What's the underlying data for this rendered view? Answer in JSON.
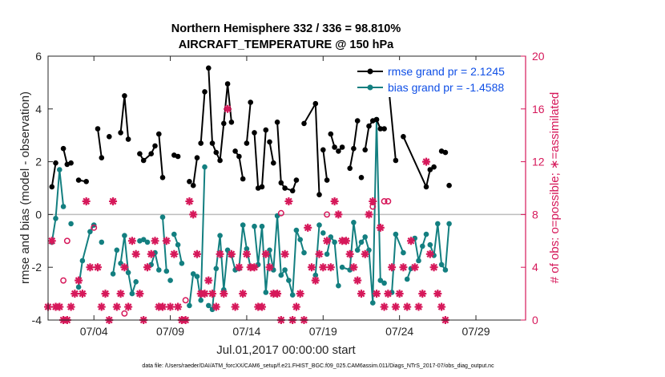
{
  "chart_data": {
    "type": "line",
    "title": [
      "Northern Hemisphere 332 / 336 = 98.810%",
      "AIRCRAFT_TEMPERATURE @ 150 hPa"
    ],
    "xlabel": "Jul.01,2017 00:00:00 start",
    "ylabel": "rmse and bias (model - observation)",
    "y2label": "# of obs: o=possible; ∗=assimilated",
    "footnote": "data file: /Users/raeder/DAI/ATM_forcXX/CAM6_setup/f.e21.FHIST_BGC.f09_025.CAM6assim.011/Diags_NTrS_2017-07/obs_diag_output.nc",
    "xlim": [
      1.0,
      32.25
    ],
    "ylim": [
      -4,
      6
    ],
    "y2lim": [
      0,
      20
    ],
    "xtick_positions": [
      4,
      9,
      14,
      19,
      24,
      29
    ],
    "xtick_labels": [
      "07/04",
      "07/09",
      "07/14",
      "07/19",
      "07/24",
      "07/29"
    ],
    "ytick_labels": [
      "-4",
      "-2",
      "0",
      "2",
      "4",
      "6"
    ],
    "y2tick_labels": [
      "0",
      "4",
      "8",
      "12",
      "16",
      "20"
    ],
    "legend_position": "top-right",
    "zero_line": true,
    "colors": {
      "rmse": "#000000",
      "bias": "#137f80",
      "counts": "#d6185a",
      "zero": "#bdbdbd",
      "legend": "#0f4fe6"
    },
    "series": [
      {
        "name": "rmse grand pr = 2.1245",
        "points": [
          [
            1.25,
            1.05
          ],
          [
            1.5,
            1.95
          ],
          [
            2.0,
            2.5
          ],
          [
            2.25,
            1.9
          ],
          [
            2.5,
            1.95
          ],
          [
            3.0,
            1.3
          ],
          [
            3.5,
            1.25
          ],
          [
            4.25,
            3.25
          ],
          [
            4.5,
            2.15
          ],
          [
            5.0,
            2.95
          ],
          [
            5.75,
            3.1
          ],
          [
            6.0,
            4.5
          ],
          [
            6.25,
            2.85
          ],
          [
            7.0,
            2.3
          ],
          [
            7.25,
            2.05
          ],
          [
            7.75,
            2.3
          ],
          [
            8.0,
            2.6
          ],
          [
            8.25,
            3.05
          ],
          [
            8.5,
            1.4
          ],
          [
            9.25,
            2.25
          ],
          [
            9.5,
            2.2
          ],
          [
            10.25,
            1.25
          ],
          [
            10.5,
            1.1
          ],
          [
            10.75,
            2.15
          ],
          [
            11.0,
            2.7
          ],
          [
            11.25,
            4.65
          ],
          [
            11.5,
            5.55
          ],
          [
            11.75,
            2.7
          ],
          [
            12.0,
            2.35
          ],
          [
            12.25,
            2.05
          ],
          [
            12.5,
            3.45
          ],
          [
            12.75,
            4.95
          ],
          [
            13.0,
            3.5
          ],
          [
            13.25,
            2.4
          ],
          [
            13.5,
            2.2
          ],
          [
            13.75,
            1.35
          ],
          [
            14.0,
            2.7
          ],
          [
            14.25,
            4.25
          ],
          [
            14.5,
            3.1
          ],
          [
            14.75,
            1.0
          ],
          [
            15.0,
            1.05
          ],
          [
            15.25,
            3.2
          ],
          [
            15.5,
            2.75
          ],
          [
            15.75,
            1.95
          ],
          [
            16.0,
            3.5
          ],
          [
            16.25,
            1.2
          ],
          [
            16.5,
            1.0
          ],
          [
            17.0,
            0.9
          ],
          [
            17.25,
            1.3
          ],
          [
            17.75,
            3.45
          ],
          [
            18.5,
            4.2
          ],
          [
            18.75,
            0.75
          ],
          [
            19.0,
            2.45
          ],
          [
            19.25,
            1.3
          ],
          [
            19.5,
            3.05
          ],
          [
            19.75,
            2.55
          ],
          [
            20.0,
            2.4
          ],
          [
            20.25,
            2.55
          ],
          [
            20.75,
            1.75
          ],
          [
            21.0,
            2.5
          ],
          [
            21.25,
            3.55
          ],
          [
            21.5,
            1.4
          ],
          [
            21.75,
            2.45
          ],
          [
            22.0,
            3.35
          ],
          [
            22.25,
            3.55
          ],
          [
            22.5,
            3.6
          ],
          [
            22.75,
            3.25
          ],
          [
            23.0,
            3.25
          ],
          [
            23.25,
            5.05
          ],
          [
            23.75,
            2.05
          ],
          [
            24.25,
            2.95
          ],
          [
            25.75,
            1.05
          ],
          [
            26.0,
            1.7
          ],
          [
            26.25,
            1.8
          ],
          [
            26.75,
            2.4
          ],
          [
            27.0,
            2.35
          ],
          [
            27.25,
            1.1
          ]
        ],
        "segments_from_point_index": [
          0,
          2,
          5,
          7,
          9,
          10,
          13,
          17,
          19,
          21,
          22,
          24,
          26,
          33,
          36,
          38,
          42,
          44,
          49,
          52,
          54,
          56,
          58,
          61,
          62,
          68,
          70,
          73,
          74,
          76,
          77
        ]
      },
      {
        "name": "bias grand pr = -1.4588",
        "points": [
          [
            1.25,
            -1.05
          ],
          [
            1.5,
            -0.15
          ],
          [
            1.75,
            1.7
          ],
          [
            2.0,
            0.3
          ],
          [
            2.5,
            -0.35
          ],
          [
            3.0,
            -2.75
          ],
          [
            3.25,
            -1.75
          ],
          [
            3.75,
            -0.65
          ],
          [
            4.0,
            -0.4
          ],
          [
            4.5,
            -1.05
          ],
          [
            5.25,
            -2.25
          ],
          [
            5.5,
            -1.35
          ],
          [
            5.75,
            -1.85
          ],
          [
            6.0,
            -0.8
          ],
          [
            6.25,
            -2.2
          ],
          [
            6.5,
            -3.0
          ],
          [
            6.75,
            -2.55
          ],
          [
            7.0,
            -1.0
          ],
          [
            7.25,
            -0.95
          ],
          [
            7.5,
            -1.05
          ],
          [
            7.75,
            -1.9
          ],
          [
            8.0,
            -1.45
          ],
          [
            8.25,
            -2.1
          ],
          [
            8.5,
            -0.1
          ],
          [
            8.75,
            -2.15
          ],
          [
            9.0,
            -2.5
          ],
          [
            9.25,
            -0.75
          ],
          [
            9.5,
            -1.15
          ],
          [
            9.75,
            -1.85
          ],
          [
            10.25,
            -3.45
          ],
          [
            10.5,
            -2.25
          ],
          [
            10.75,
            -2.35
          ],
          [
            11.0,
            -3.25
          ],
          [
            11.25,
            1.8
          ],
          [
            11.5,
            -3.45
          ],
          [
            11.75,
            -3.6
          ],
          [
            12.0,
            -2.05
          ],
          [
            12.25,
            -0.8
          ],
          [
            12.5,
            -2.85
          ],
          [
            12.75,
            -1.35
          ],
          [
            13.0,
            -1.55
          ],
          [
            13.25,
            -2.1
          ],
          [
            13.5,
            -2.05
          ],
          [
            13.75,
            -0.4
          ],
          [
            14.0,
            -1.3
          ],
          [
            14.25,
            -2.0
          ],
          [
            14.5,
            -0.45
          ],
          [
            14.75,
            -1.9
          ],
          [
            15.0,
            -0.45
          ],
          [
            15.25,
            -2.95
          ],
          [
            15.5,
            -1.35
          ],
          [
            15.75,
            -2.1
          ],
          [
            16.0,
            -0.05
          ],
          [
            16.25,
            -2.3
          ],
          [
            16.5,
            -2.1
          ],
          [
            16.75,
            -2.5
          ],
          [
            17.0,
            -3.05
          ],
          [
            17.25,
            -0.6
          ],
          [
            17.5,
            -0.95
          ],
          [
            17.75,
            -1.45
          ],
          [
            18.5,
            -2.3
          ],
          [
            18.75,
            -0.4
          ],
          [
            19.0,
            -0.7
          ],
          [
            19.25,
            -1.5
          ],
          [
            19.5,
            -0.85
          ],
          [
            19.75,
            -1.05
          ],
          [
            20.0,
            -2.7
          ],
          [
            20.25,
            -2.0
          ],
          [
            20.75,
            -2.1
          ],
          [
            21.0,
            -0.3
          ],
          [
            21.25,
            -1.35
          ],
          [
            21.5,
            -1.05
          ],
          [
            21.75,
            -0.85
          ],
          [
            22.0,
            -1.35
          ],
          [
            22.25,
            -3.35
          ],
          [
            22.5,
            3.6
          ],
          [
            22.75,
            -2.5
          ],
          [
            23.0,
            -2.6
          ],
          [
            23.5,
            -2.95
          ],
          [
            23.75,
            -0.75
          ],
          [
            24.25,
            -1.45
          ],
          [
            24.5,
            -2.45
          ],
          [
            24.75,
            -2.05
          ],
          [
            25.0,
            -0.9
          ],
          [
            25.25,
            -1.75
          ],
          [
            25.5,
            -1.2
          ],
          [
            25.75,
            -0.75
          ],
          [
            26.0,
            -1.15
          ],
          [
            26.25,
            -1.55
          ],
          [
            26.5,
            -0.35
          ],
          [
            26.75,
            -1.9
          ],
          [
            27.0,
            -2.1
          ],
          [
            27.25,
            -0.35
          ]
        ],
        "segments_from_point_index": [
          0,
          4,
          5,
          9,
          10,
          12,
          17,
          20,
          23,
          25,
          26,
          29,
          31,
          34,
          46,
          60,
          62,
          63,
          67,
          78,
          81,
          83,
          87,
          93
        ]
      }
    ],
    "obs_possible": [
      [
        2.0,
        3
      ],
      [
        2.25,
        6
      ],
      [
        4.0,
        7
      ],
      [
        6.0,
        0.5
      ],
      [
        10.0,
        1.5
      ],
      [
        16.25,
        8.1
      ],
      [
        19.25,
        8.0
      ],
      [
        22.25,
        8.6
      ],
      [
        23.0,
        9.0
      ],
      [
        23.25,
        9.0
      ]
    ],
    "obs_assimilated": [
      [
        1.0,
        1
      ],
      [
        1.25,
        6
      ],
      [
        1.5,
        1
      ],
      [
        1.75,
        1
      ],
      [
        2.0,
        0
      ],
      [
        2.25,
        0
      ],
      [
        2.5,
        1
      ],
      [
        2.75,
        2
      ],
      [
        3.0,
        3
      ],
      [
        3.25,
        2
      ],
      [
        3.5,
        9
      ],
      [
        3.75,
        4
      ],
      [
        4.25,
        4
      ],
      [
        4.5,
        1
      ],
      [
        4.75,
        2
      ],
      [
        5.0,
        0
      ],
      [
        5.25,
        9
      ],
      [
        5.5,
        1
      ],
      [
        5.75,
        2
      ],
      [
        6.0,
        4
      ],
      [
        6.25,
        1
      ],
      [
        6.5,
        6
      ],
      [
        6.75,
        5
      ],
      [
        7.0,
        2
      ],
      [
        7.25,
        0
      ],
      [
        7.5,
        4
      ],
      [
        7.75,
        5
      ],
      [
        8.0,
        6
      ],
      [
        8.25,
        1
      ],
      [
        8.5,
        1
      ],
      [
        8.75,
        6
      ],
      [
        9.0,
        1
      ],
      [
        9.25,
        5
      ],
      [
        9.5,
        1
      ],
      [
        9.75,
        0
      ],
      [
        10.0,
        0
      ],
      [
        10.25,
        9
      ],
      [
        10.5,
        8
      ],
      [
        10.75,
        5
      ],
      [
        11.0,
        2
      ],
      [
        11.25,
        2
      ],
      [
        11.5,
        3
      ],
      [
        11.75,
        2
      ],
      [
        12.0,
        1
      ],
      [
        12.25,
        5
      ],
      [
        12.5,
        2
      ],
      [
        12.75,
        16
      ],
      [
        13.0,
        5
      ],
      [
        13.25,
        1
      ],
      [
        13.5,
        4
      ],
      [
        13.75,
        2
      ],
      [
        14.0,
        5
      ],
      [
        14.25,
        4
      ],
      [
        14.5,
        4
      ],
      [
        14.75,
        1
      ],
      [
        15.0,
        1
      ],
      [
        15.25,
        5
      ],
      [
        15.5,
        4
      ],
      [
        15.75,
        2
      ],
      [
        16.0,
        2
      ],
      [
        16.25,
        0
      ],
      [
        16.5,
        5
      ],
      [
        16.75,
        9
      ],
      [
        17.0,
        0
      ],
      [
        17.25,
        1
      ],
      [
        17.5,
        2
      ],
      [
        17.75,
        0
      ],
      [
        18.0,
        7
      ],
      [
        18.25,
        4
      ],
      [
        18.5,
        3
      ],
      [
        18.75,
        5
      ],
      [
        19.0,
        4
      ],
      [
        19.25,
        6
      ],
      [
        19.5,
        4
      ],
      [
        19.75,
        9
      ],
      [
        20.0,
        8
      ],
      [
        20.25,
        6
      ],
      [
        20.5,
        6
      ],
      [
        20.75,
        5
      ],
      [
        21.0,
        4
      ],
      [
        21.25,
        3
      ],
      [
        21.5,
        2
      ],
      [
        21.75,
        5
      ],
      [
        22.0,
        8
      ],
      [
        22.25,
        9
      ],
      [
        22.5,
        2
      ],
      [
        22.75,
        7
      ],
      [
        23.0,
        1
      ],
      [
        23.25,
        2
      ],
      [
        23.5,
        4
      ],
      [
        23.75,
        1
      ],
      [
        24.0,
        2
      ],
      [
        24.25,
        4
      ],
      [
        24.5,
        1
      ],
      [
        24.75,
        6
      ],
      [
        25.0,
        4
      ],
      [
        25.25,
        1
      ],
      [
        25.5,
        2
      ],
      [
        25.75,
        12
      ],
      [
        26.0,
        5
      ],
      [
        26.25,
        4
      ],
      [
        26.5,
        2
      ],
      [
        26.75,
        1
      ],
      [
        27.0,
        0
      ]
    ]
  }
}
